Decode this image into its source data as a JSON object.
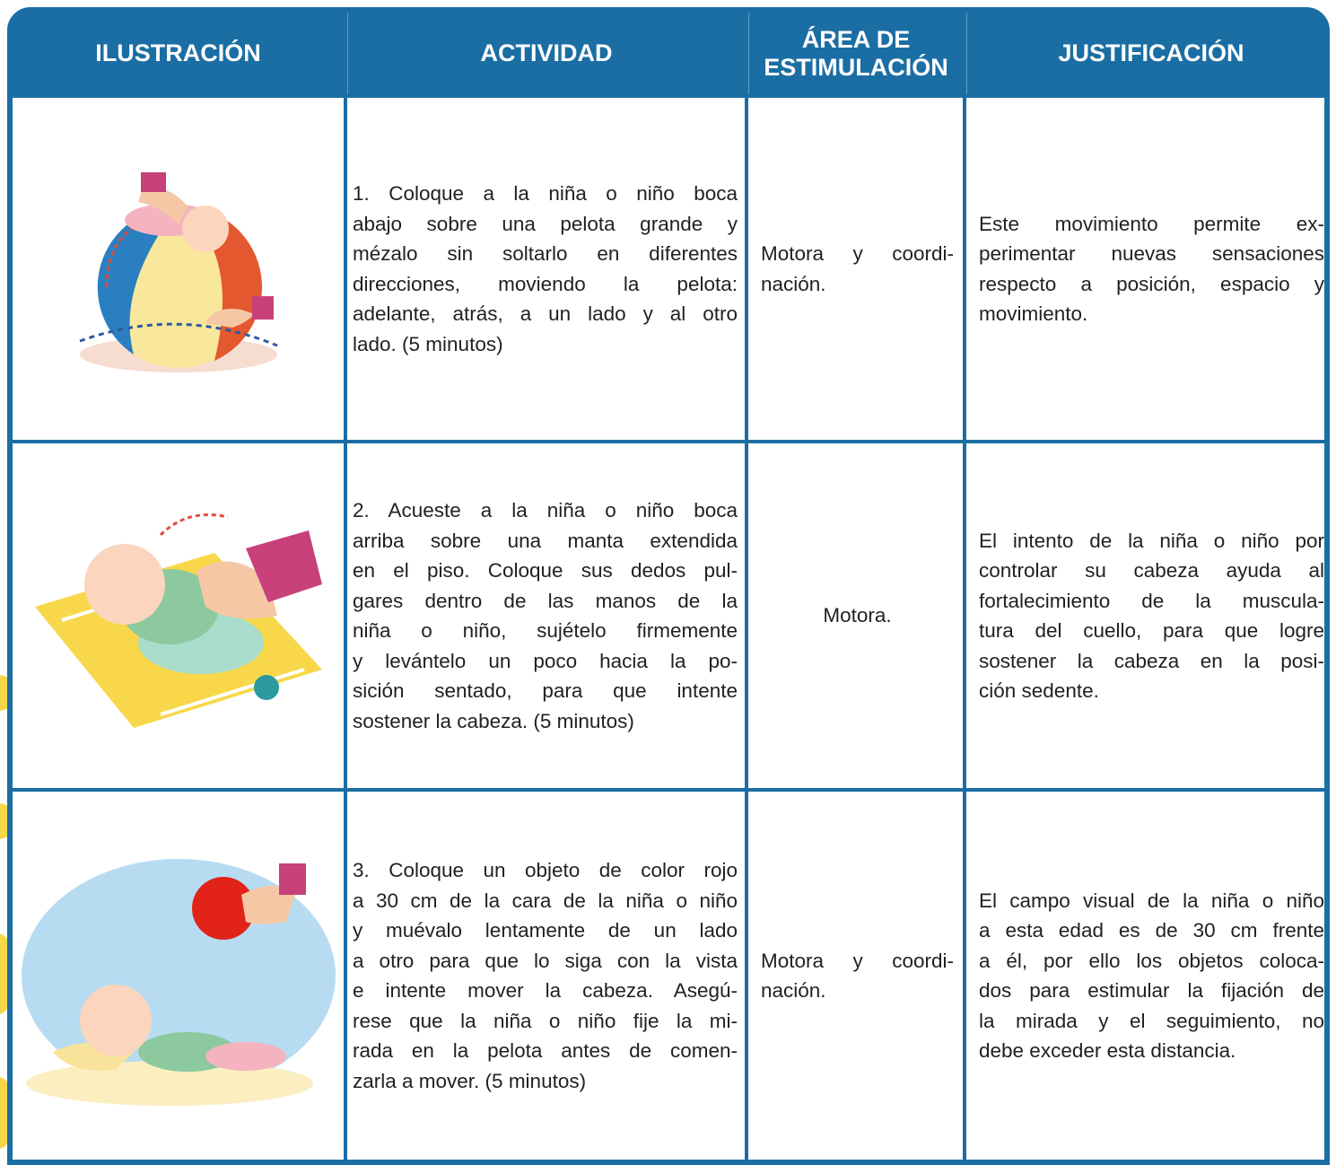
{
  "table": {
    "header": [
      "ILUSTRACIÓN",
      "ACTIVIDAD",
      [
        "ÁREA DE",
        "ESTIMULACIÓN"
      ],
      "JUSTIFICACIÓN"
    ],
    "rows": [
      {
        "activity": [
          "1. Coloque a la niña o niño boca",
          "abajo sobre una pelota grande y",
          "mézalo sin soltarlo en diferentes",
          "direcciones, moviendo la pelota:",
          "adelante, atrás, a un lado y al otro",
          "lado. (5 minutos)"
        ],
        "area": [
          "Motora y coordi-",
          "nación."
        ],
        "justification": [
          "Este movimiento permite ex-",
          "perimentar nuevas sensaciones",
          "respecto a posición, espacio y",
          "movimiento."
        ]
      },
      {
        "activity": [
          "2. Acueste a la niña o niño boca",
          "arriba sobre una manta extendida",
          "en el piso. Coloque sus dedos pul-",
          "gares dentro de las manos de la",
          "niña o niño, sujételo firmemente",
          "y levántelo un poco hacia la po-",
          "sición sentado, para que intente",
          "sostener la cabeza. (5 minutos)"
        ],
        "area": [
          "Motora."
        ],
        "justification": [
          "El intento de la niña o niño por",
          "controlar su cabeza ayuda al",
          "fortalecimiento de la muscula-",
          "tura del cuello, para que logre",
          "sostener la cabeza en la posi-",
          "ción sedente."
        ]
      },
      {
        "activity": [
          "3. Coloque un objeto de color rojo",
          "a 30 cm de la cara de la niña o niño",
          "y muévalo lentamente de un lado",
          "a otro para que lo siga con la vista",
          "e intente mover la cabeza. Asegú-",
          "rese que la niña o niño fije la mi-",
          "rada en la pelota antes de comen-",
          "zarla a mover. (5 minutos)"
        ],
        "area": [
          "Motora y coordi-",
          "nación."
        ],
        "justification": [
          "El campo visual de la niña o niño",
          "a esta edad es de 30 cm frente",
          "a él, por ello los objetos coloca-",
          "dos para estimular la fijación de",
          "la mirada y el seguimiento, no",
          "debe exceder esta distancia."
        ]
      }
    ]
  }
}
